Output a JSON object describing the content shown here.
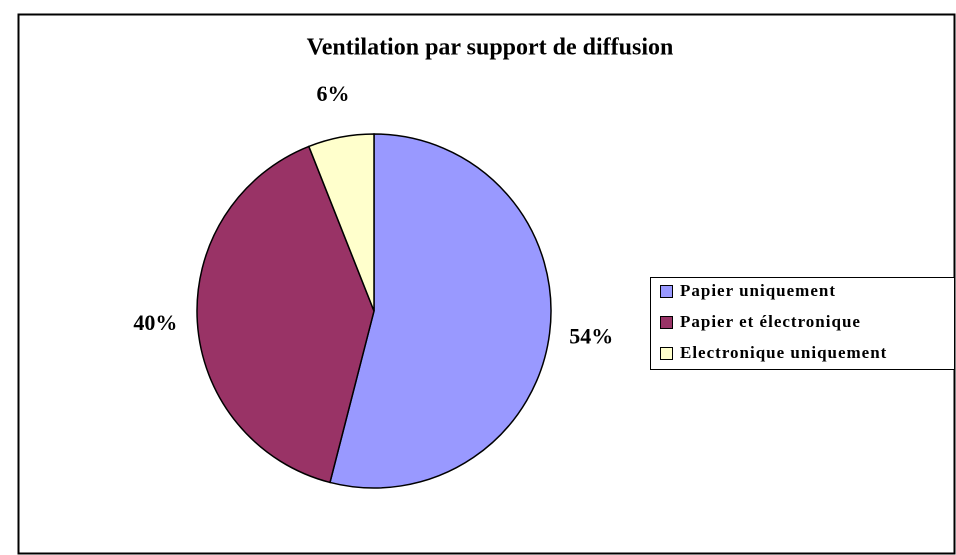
{
  "chart_data": {
    "type": "pie",
    "title": "Ventilation par support de diffusion",
    "categories": [
      "Papier uniquement",
      "Papier et électronique",
      "Electronique uniquement"
    ],
    "values": [
      54,
      40,
      6
    ],
    "value_labels": [
      "54%",
      "40%",
      "6%"
    ],
    "colors": [
      "#9999ff",
      "#993366",
      "#ffffcc"
    ],
    "legend": "right"
  }
}
